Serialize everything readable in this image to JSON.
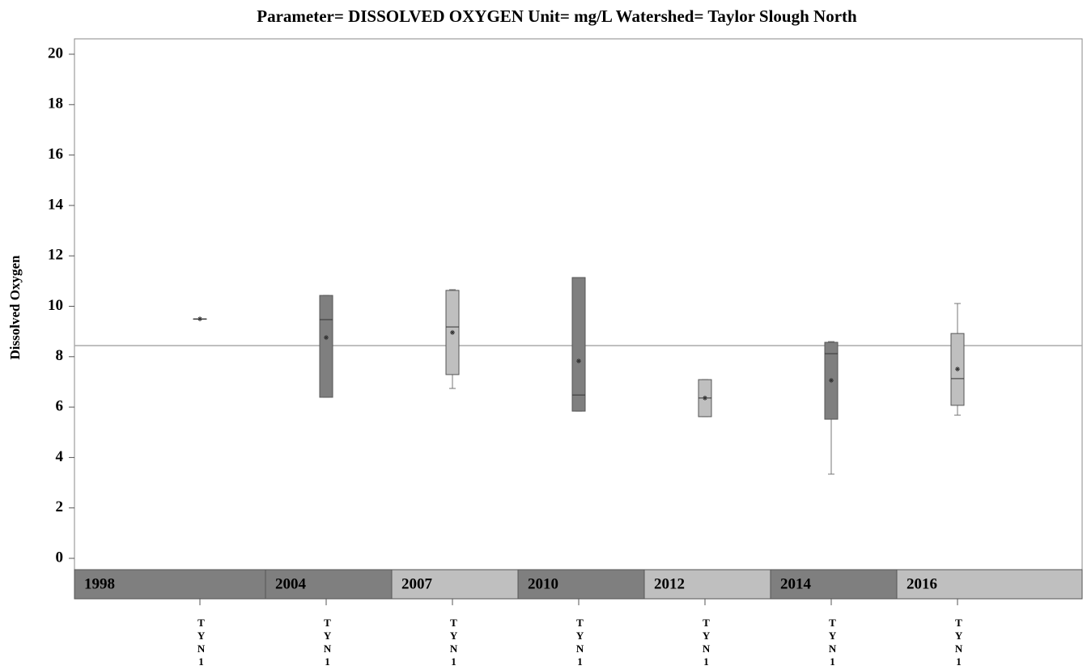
{
  "chart_data": {
    "type": "box",
    "title": "Parameter= DISSOLVED  OXYGEN  Unit= mg/L  Watershed= Taylor  Slough  North",
    "ylabel": "Dissolved Oxygen",
    "ylim": [
      0,
      20
    ],
    "yticks": [
      0,
      2,
      4,
      6,
      8,
      10,
      12,
      14,
      16,
      18,
      20
    ],
    "reference_line": 8.44,
    "categories": [
      "1998",
      "2004",
      "2007",
      "2010",
      "2012",
      "2014",
      "2016"
    ],
    "sites": [
      "TYN1",
      "TYN1",
      "TYN1",
      "TYN1",
      "TYN1",
      "TYN1",
      "TYN1"
    ],
    "colors": [
      "#7f7f7f",
      "#7f7f7f",
      "#bfbfbf",
      "#7f7f7f",
      "#bfbfbf",
      "#7f7f7f",
      "#bfbfbf"
    ],
    "boxes": [
      {
        "min": 9.5,
        "q1": 9.5,
        "median": 9.5,
        "q3": 9.5,
        "max": 9.5,
        "mean": 9.5
      },
      {
        "min": 6.39,
        "q1": 6.39,
        "median": 9.47,
        "q3": 10.43,
        "max": 10.43,
        "mean": 8.76
      },
      {
        "min": 6.74,
        "q1": 7.29,
        "median": 9.18,
        "q3": 10.63,
        "max": 10.66,
        "mean": 8.96
      },
      {
        "min": 5.84,
        "q1": 5.84,
        "median": 6.48,
        "q3": 11.14,
        "max": 11.14,
        "mean": 7.83
      },
      {
        "min": 5.62,
        "q1": 5.62,
        "median": 6.36,
        "q3": 7.09,
        "max": 7.09,
        "mean": 6.36
      },
      {
        "min": 3.34,
        "q1": 5.52,
        "median": 8.12,
        "q3": 8.57,
        "max": 8.6,
        "mean": 7.06
      },
      {
        "min": 5.68,
        "q1": 6.07,
        "median": 7.13,
        "q3": 8.92,
        "max": 10.11,
        "mean": 7.51
      }
    ]
  }
}
